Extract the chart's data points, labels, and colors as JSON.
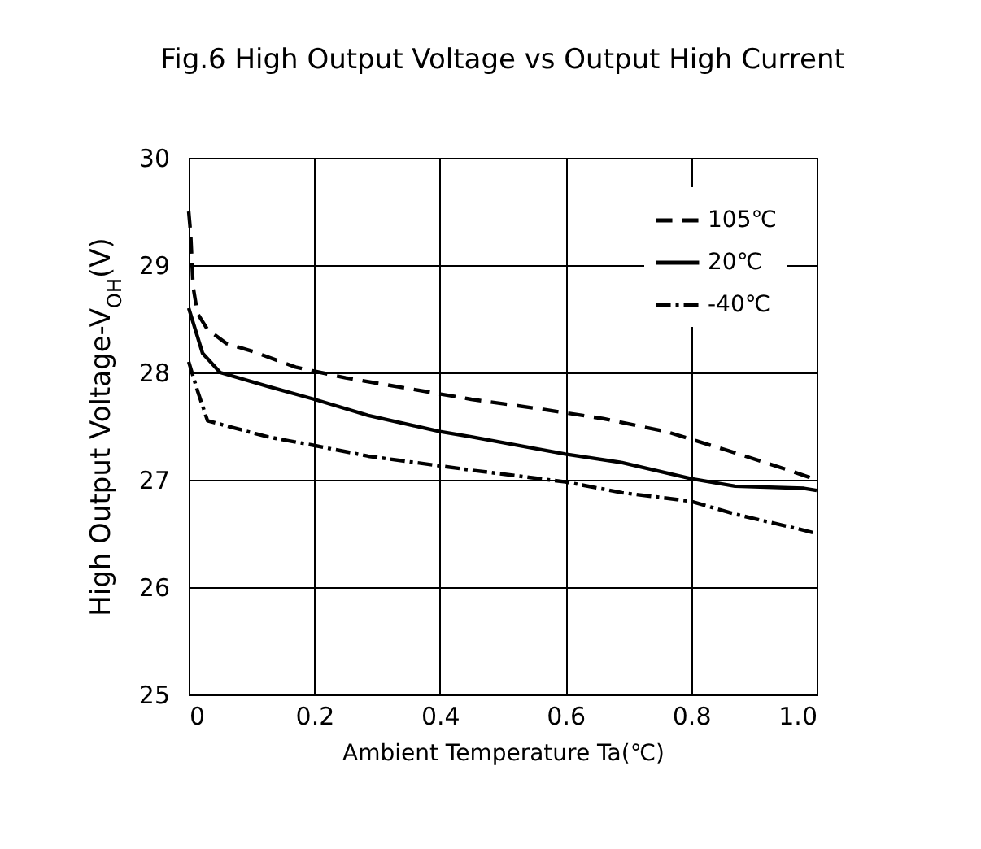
{
  "chart_data": {
    "type": "line",
    "title": "Fig.6 High Output Voltage vs Output High Current",
    "xlabel": "Ambient Temperature Ta(℃)",
    "ylabel": "High Output Voltage-V$_{OH}$(V)",
    "xlim": [
      0,
      1
    ],
    "ylim": [
      25,
      30
    ],
    "xticks": [
      0,
      0.2,
      0.4,
      0.6,
      0.8,
      {
        "value": 1,
        "label": "1.0"
      }
    ],
    "yticks": [
      25,
      26,
      27,
      28,
      29,
      30
    ],
    "grid": true,
    "legend": "top right",
    "marker": "none",
    "series": [
      {
        "name": "105℃",
        "color": "#000000",
        "line_style": "dashed",
        "x": [
          0,
          0.003,
          0.007,
          0.014,
          0.03,
          0.06,
          0.1,
          0.17,
          0.25,
          0.35,
          0.45,
          0.56,
          0.66,
          0.76,
          0.86,
          0.95,
          1.0
        ],
        "values": [
          29.5,
          29.3,
          28.8,
          28.55,
          28.4,
          28.27,
          28.2,
          28.05,
          27.95,
          27.85,
          27.75,
          27.66,
          27.57,
          27.45,
          27.27,
          27.1,
          27.0
        ]
      },
      {
        "name": "20℃",
        "color": "#000000",
        "line_style": "solid",
        "x": [
          0,
          0.022,
          0.05,
          0.126,
          0.2,
          0.286,
          0.4,
          0.45,
          0.6,
          0.69,
          0.8,
          0.87,
          0.98,
          1.0
        ],
        "values": [
          28.6,
          28.18,
          28.0,
          27.87,
          27.75,
          27.6,
          27.45,
          27.4,
          27.24,
          27.16,
          27.01,
          26.94,
          26.92,
          26.9
        ]
      },
      {
        "name": "-40℃",
        "color": "#000000",
        "line_style": "dotted",
        "x": [
          0,
          0.014,
          0.03,
          0.126,
          0.2,
          0.286,
          0.4,
          0.45,
          0.6,
          0.69,
          0.8,
          0.87,
          0.98,
          1.0
        ],
        "values": [
          28.1,
          27.83,
          27.55,
          27.4,
          27.32,
          27.22,
          27.13,
          27.09,
          26.98,
          26.88,
          26.8,
          26.68,
          26.53,
          26.5
        ]
      }
    ]
  }
}
